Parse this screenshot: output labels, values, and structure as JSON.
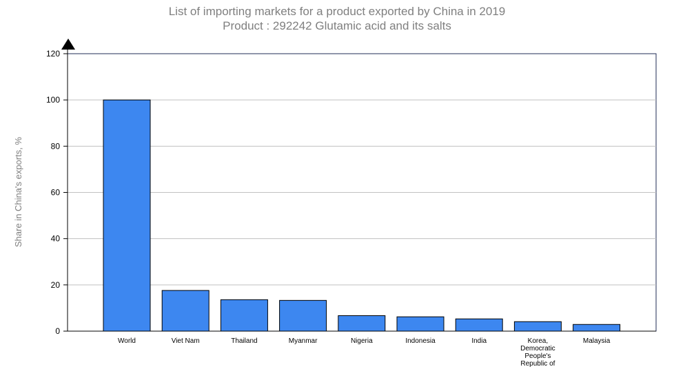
{
  "chart_data": {
    "type": "bar",
    "title": "List of importing markets for a product exported by China in 2019",
    "subtitle": "Product : 292242 Glutamic acid and its salts",
    "xlabel": "",
    "ylabel": "Share in China's exports, %",
    "ylim": [
      0,
      120
    ],
    "yticks": [
      0,
      20,
      40,
      60,
      80,
      100,
      120
    ],
    "grid": true,
    "categories": [
      [
        "World"
      ],
      [
        "Viet Nam"
      ],
      [
        "Thailand"
      ],
      [
        "Myanmar"
      ],
      [
        "Nigeria"
      ],
      [
        "Indonesia"
      ],
      [
        "India"
      ],
      [
        "Korea,",
        "Democratic",
        "People's",
        "Republic of"
      ],
      [
        "Malaysia"
      ]
    ],
    "values": [
      100,
      17.6,
      13.6,
      13.3,
      6.7,
      6.2,
      5.3,
      4.1,
      2.9
    ],
    "bar_color": "#3d87f0"
  }
}
